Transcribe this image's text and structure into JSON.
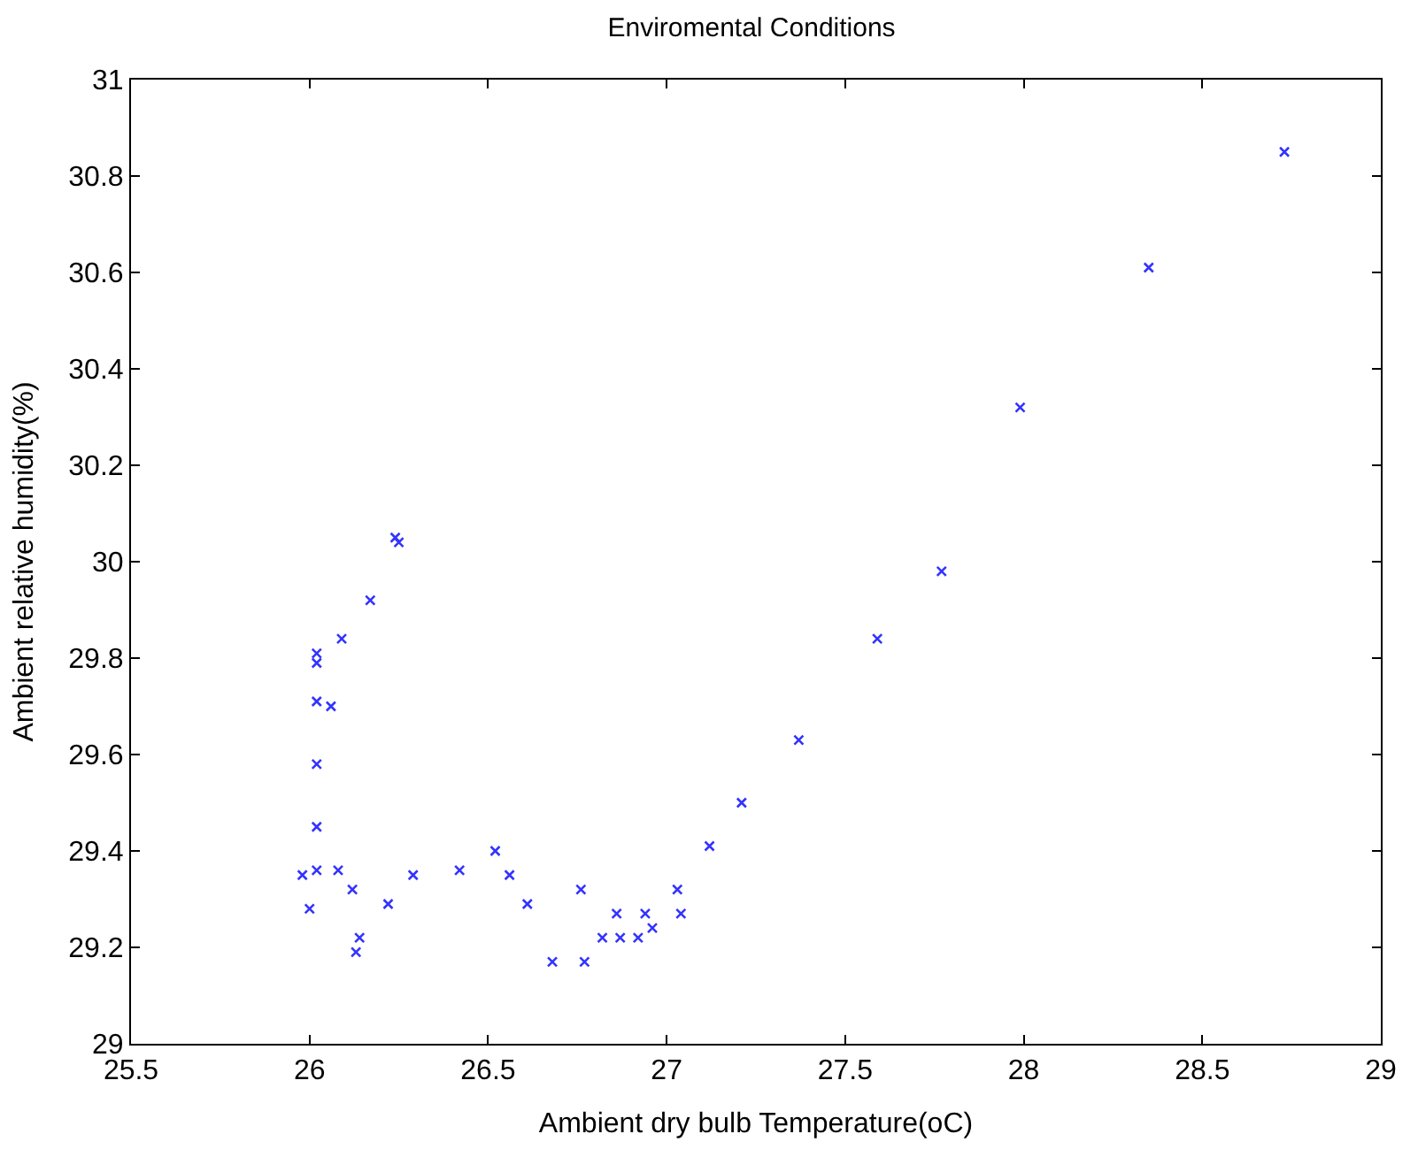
{
  "chart_data": {
    "type": "scatter",
    "title": "Enviromental Conditions",
    "xlabel": "Ambient dry bulb Temperature(oC)",
    "ylabel": "Ambient relative humidity(%)",
    "x": [
      25.98,
      26.0,
      26.02,
      26.02,
      26.02,
      26.02,
      26.02,
      26.02,
      26.06,
      26.08,
      26.09,
      26.12,
      26.13,
      26.14,
      26.17,
      26.22,
      26.24,
      26.25,
      26.29,
      26.42,
      26.52,
      26.56,
      26.61,
      26.68,
      26.76,
      26.77,
      26.82,
      26.86,
      26.87,
      26.92,
      26.94,
      26.96,
      27.03,
      27.04,
      27.12,
      27.21,
      27.37,
      27.59,
      27.77,
      27.99,
      28.35,
      28.73
    ],
    "series": [
      {
        "color": "#3333ff",
        "values": [
          29.35,
          29.28,
          29.36,
          29.45,
          29.58,
          29.71,
          29.79,
          29.81,
          29.7,
          29.36,
          29.84,
          29.32,
          29.19,
          29.22,
          29.92,
          29.29,
          30.05,
          30.04,
          29.35,
          29.36,
          29.4,
          29.35,
          29.29,
          29.17,
          29.32,
          29.17,
          29.22,
          29.27,
          29.22,
          29.22,
          29.27,
          29.24,
          29.32,
          29.27,
          29.41,
          29.5,
          29.63,
          29.84,
          29.98,
          30.32,
          30.61,
          30.85
        ]
      }
    ],
    "xlim": [
      25.5,
      29
    ],
    "xticks": [
      25.5,
      26,
      26.5,
      27,
      27.5,
      28,
      28.5,
      29
    ],
    "ylim": [
      29,
      31
    ],
    "yticks": [
      29,
      29.2,
      29.4,
      29.6,
      29.8,
      30,
      30.2,
      30.4,
      30.6,
      30.8,
      31
    ],
    "marker": "cross",
    "grid": false,
    "legend": false
  }
}
